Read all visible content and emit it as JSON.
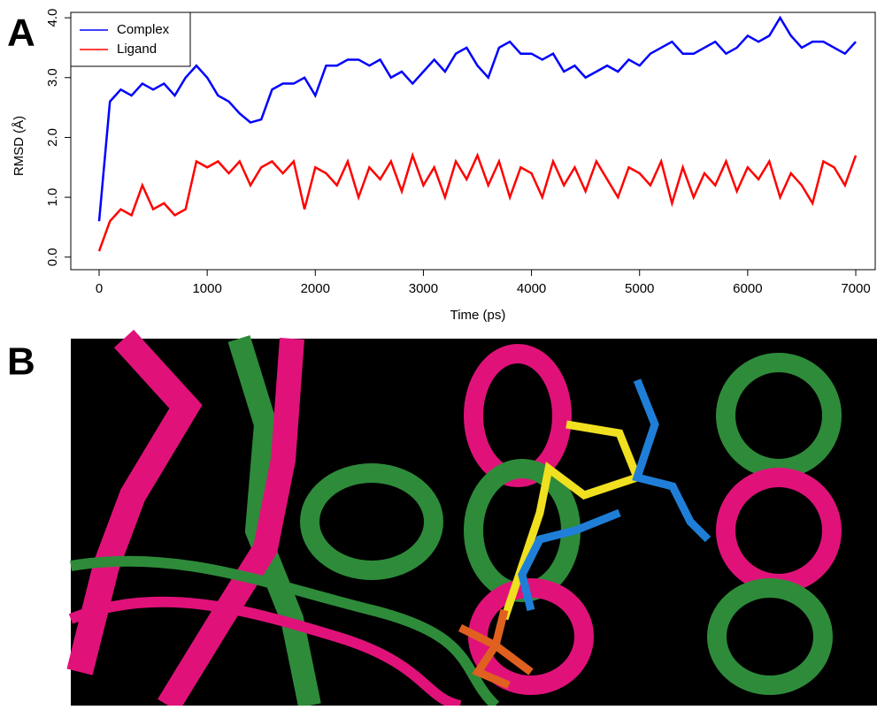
{
  "panels": {
    "a": "A",
    "b": "B"
  },
  "chart_data": {
    "type": "line",
    "xlabel": "Time (ps)",
    "ylabel": "RMSD (Å)",
    "xlim": [
      -262,
      7180
    ],
    "ylim": [
      -0.21,
      4.09
    ],
    "xticks": [
      0,
      1000,
      2000,
      3000,
      4000,
      5000,
      6000,
      7000
    ],
    "yticks": [
      {
        "value": 0,
        "label": "0.0"
      },
      {
        "value": 1,
        "label": "1.0"
      },
      {
        "value": 2,
        "label": "2.0"
      },
      {
        "value": 3,
        "label": "3.0"
      },
      {
        "value": 4,
        "label": "4.0"
      }
    ],
    "legend": "top-left",
    "grid": false,
    "x": [
      0,
      100,
      200,
      300,
      400,
      500,
      600,
      700,
      800,
      900,
      1000,
      1100,
      1200,
      1300,
      1400,
      1500,
      1600,
      1700,
      1800,
      1900,
      2000,
      2100,
      2200,
      2300,
      2400,
      2500,
      2600,
      2700,
      2800,
      2900,
      3000,
      3100,
      3200,
      3300,
      3400,
      3500,
      3600,
      3700,
      3800,
      3900,
      4000,
      4100,
      4200,
      4300,
      4400,
      4500,
      4600,
      4700,
      4800,
      4900,
      5000,
      5100,
      5200,
      5300,
      5400,
      5500,
      5600,
      5700,
      5800,
      5900,
      6000,
      6100,
      6200,
      6300,
      6400,
      6500,
      6600,
      6700,
      6800,
      6900,
      7000
    ],
    "series": [
      {
        "name": "Complex",
        "color": "#0000ff",
        "values": [
          0.6,
          2.6,
          2.8,
          2.7,
          2.9,
          2.8,
          2.9,
          2.7,
          3.0,
          3.2,
          3.0,
          2.7,
          2.6,
          2.4,
          2.25,
          2.3,
          2.8,
          2.9,
          2.9,
          3.0,
          2.7,
          3.2,
          3.2,
          3.3,
          3.3,
          3.2,
          3.3,
          3.0,
          3.1,
          2.9,
          3.1,
          3.3,
          3.1,
          3.4,
          3.5,
          3.2,
          3.0,
          3.5,
          3.6,
          3.4,
          3.4,
          3.3,
          3.4,
          3.1,
          3.2,
          3.0,
          3.1,
          3.2,
          3.1,
          3.3,
          3.2,
          3.4,
          3.5,
          3.6,
          3.4,
          3.4,
          3.5,
          3.6,
          3.4,
          3.5,
          3.7,
          3.6,
          3.7,
          4.0,
          3.7,
          3.5,
          3.6,
          3.6,
          3.5,
          3.4,
          3.6
        ]
      },
      {
        "name": "Ligand",
        "color": "#ff0000",
        "values": [
          0.1,
          0.6,
          0.8,
          0.7,
          1.2,
          0.8,
          0.9,
          0.7,
          0.8,
          1.6,
          1.5,
          1.6,
          1.4,
          1.6,
          1.2,
          1.5,
          1.6,
          1.4,
          1.6,
          0.8,
          1.5,
          1.4,
          1.2,
          1.6,
          1.0,
          1.5,
          1.3,
          1.6,
          1.1,
          1.7,
          1.2,
          1.5,
          1.0,
          1.6,
          1.3,
          1.7,
          1.2,
          1.6,
          1.0,
          1.5,
          1.4,
          1.0,
          1.6,
          1.2,
          1.5,
          1.1,
          1.6,
          1.3,
          1.0,
          1.5,
          1.4,
          1.2,
          1.6,
          0.9,
          1.5,
          1.0,
          1.4,
          1.2,
          1.6,
          1.1,
          1.5,
          1.3,
          1.6,
          1.0,
          1.4,
          1.2,
          0.9,
          1.6,
          1.5,
          1.2,
          1.7
        ]
      }
    ]
  }
}
